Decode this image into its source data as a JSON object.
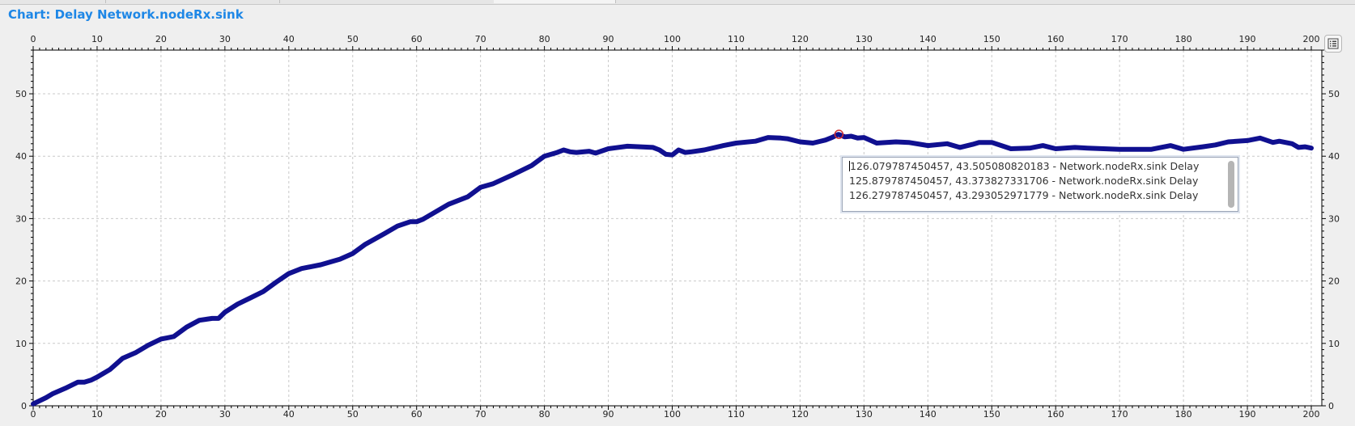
{
  "title": "Chart: Delay Network.nodeRx.sink",
  "icons": {
    "menu": "list-menu-icon"
  },
  "tooltip": {
    "rows": [
      "126.079787450457, 43.505080820183 - Network.nodeRx.sink Delay",
      "125.879787450457, 43.373827331706 - Network.nodeRx.sink Delay",
      "126.279787450457, 43.293052971779 - Network.nodeRx.sink Delay"
    ]
  },
  "chart_data": {
    "type": "line",
    "title": "Delay Network.nodeRx.sink",
    "xlim": [
      0,
      200
    ],
    "ylim": [
      0,
      57
    ],
    "xticks": [
      0,
      10,
      20,
      30,
      40,
      50,
      60,
      70,
      80,
      90,
      100,
      110,
      120,
      130,
      140,
      150,
      160,
      170,
      180,
      190,
      200
    ],
    "yticks": [
      0,
      10,
      20,
      30,
      40,
      50
    ],
    "grid": true,
    "line_color": "#101090",
    "highlight_point": [
      126.079787450457,
      43.505080820183
    ],
    "series": [
      {
        "x": [
          0,
          1,
          2,
          3,
          5,
          7,
          8,
          9,
          10,
          12,
          14,
          16,
          18,
          20,
          21,
          22,
          24,
          26,
          28,
          29,
          30,
          32,
          34,
          36,
          38,
          40,
          42,
          45,
          48,
          50,
          52,
          55,
          57,
          59,
          60,
          61,
          63,
          65,
          68,
          70,
          72,
          75,
          78,
          80,
          82,
          83,
          84,
          85,
          87,
          88,
          90,
          93,
          95,
          97,
          98,
          99,
          100,
          101,
          102,
          103,
          105,
          108,
          110,
          113,
          115,
          117,
          118,
          120,
          122,
          124,
          125,
          126,
          127,
          128,
          129,
          130,
          132,
          135,
          137,
          140,
          143,
          145,
          147,
          148,
          150,
          153,
          156,
          158,
          160,
          163,
          165,
          170,
          175,
          178,
          180,
          183,
          185,
          187,
          190,
          192,
          194,
          195,
          197,
          198,
          199,
          200
        ],
        "y": [
          0.3,
          0.8,
          1.3,
          1.9,
          2.8,
          3.8,
          3.8,
          4.1,
          4.6,
          5.8,
          7.6,
          8.5,
          9.7,
          10.7,
          10.9,
          11.1,
          12.6,
          13.7,
          14.0,
          14.0,
          15.0,
          16.3,
          17.3,
          18.3,
          19.8,
          21.2,
          22.0,
          22.6,
          23.5,
          24.4,
          25.9,
          27.6,
          28.8,
          29.5,
          29.5,
          29.9,
          31.1,
          32.3,
          33.5,
          35.0,
          35.6,
          37.0,
          38.5,
          40.0,
          40.6,
          41.0,
          40.7,
          40.6,
          40.8,
          40.5,
          41.2,
          41.6,
          41.5,
          41.4,
          41.0,
          40.3,
          40.2,
          41.0,
          40.6,
          40.7,
          41.0,
          41.7,
          42.1,
          42.4,
          43.0,
          42.9,
          42.8,
          42.3,
          42.1,
          42.6,
          43.0,
          43.5,
          43.1,
          43.2,
          42.9,
          43.0,
          42.1,
          42.3,
          42.2,
          41.7,
          42.0,
          41.4,
          41.9,
          42.2,
          42.2,
          41.2,
          41.3,
          41.7,
          41.2,
          41.4,
          41.3,
          41.1,
          41.1,
          41.7,
          41.1,
          41.5,
          41.8,
          42.3,
          42.5,
          42.9,
          42.2,
          42.4,
          42.0,
          41.4,
          41.5,
          41.3
        ]
      }
    ]
  }
}
